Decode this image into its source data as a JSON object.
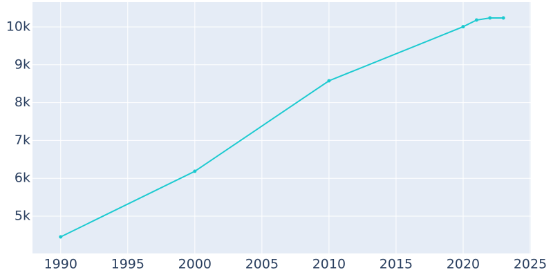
{
  "chart_data": {
    "type": "line",
    "x": [
      1990,
      2000,
      2010,
      2020,
      2021,
      2022,
      2023
    ],
    "series": [
      {
        "color": "#1ccad0",
        "values": [
          4453,
          6186,
          8577,
          10006,
          10182,
          10237,
          10237
        ]
      }
    ],
    "xlim": [
      1987.9,
      2025.05
    ],
    "xticks": [
      1990,
      1995,
      2000,
      2005,
      2010,
      2015,
      2020,
      2025
    ],
    "ylim": [
      4015,
      10657
    ],
    "yticks": [
      {
        "value": 5000,
        "label": "5k"
      },
      {
        "value": 6000,
        "label": "6k"
      },
      {
        "value": 7000,
        "label": "7k"
      },
      {
        "value": 8000,
        "label": "8k"
      },
      {
        "value": 9000,
        "label": "9k"
      },
      {
        "value": 10000,
        "label": "10k"
      }
    ],
    "grid": true,
    "background": "#e5ecf6"
  }
}
